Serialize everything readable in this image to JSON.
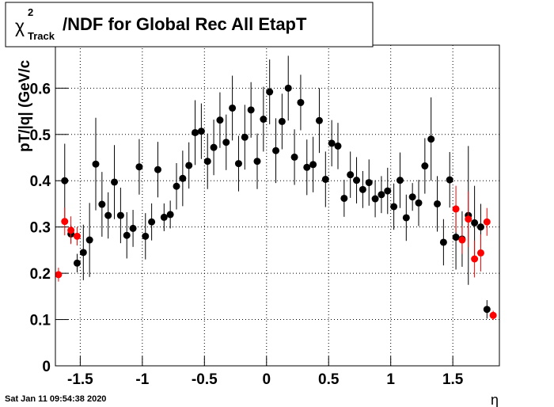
{
  "chart_data": {
    "type": "scatter",
    "title": {
      "symbol": "χ",
      "sup": "2",
      "sub": "Track",
      "text": "/NDF for Global Rec All EtapT"
    },
    "y_label": "pT/|q| (GeV/c",
    "x_label": "η",
    "timestamp": "Sat Jan 11 09:54:38 2020",
    "xlim": [
      -1.7,
      1.875
    ],
    "ylim": [
      0,
      0.693
    ],
    "xticks": [
      -1.5,
      -1,
      -0.5,
      0,
      0.5,
      1,
      1.5
    ],
    "yticks": [
      0,
      0.1,
      0.2,
      0.3,
      0.4,
      0.5,
      0.6
    ],
    "grid": true,
    "series": [
      {
        "color": "#000000",
        "x": [
          -1.625,
          -1.575,
          -1.525,
          -1.475,
          -1.425,
          -1.375,
          -1.325,
          -1.275,
          -1.225,
          -1.175,
          -1.125,
          -1.075,
          -1.025,
          -0.975,
          -0.925,
          -0.875,
          -0.825,
          -0.775,
          -0.725,
          -0.675,
          -0.625,
          -0.575,
          -0.525,
          -0.475,
          -0.425,
          -0.375,
          -0.325,
          -0.275,
          -0.225,
          -0.175,
          -0.125,
          -0.075,
          -0.025,
          0.025,
          0.075,
          0.125,
          0.175,
          0.225,
          0.275,
          0.325,
          0.375,
          0.425,
          0.475,
          0.525,
          0.575,
          0.625,
          0.675,
          0.725,
          0.775,
          0.825,
          0.875,
          0.925,
          0.975,
          1.025,
          1.075,
          1.125,
          1.175,
          1.225,
          1.275,
          1.325,
          1.375,
          1.425,
          1.475,
          1.525,
          1.575,
          1.625,
          1.675,
          1.725,
          1.775
        ],
        "values": [
          0.4,
          0.285,
          0.222,
          0.245,
          0.272,
          0.436,
          0.349,
          0.325,
          0.397,
          0.325,
          0.282,
          0.297,
          0.43,
          0.28,
          0.311,
          0.424,
          0.321,
          0.327,
          0.388,
          0.405,
          0.433,
          0.504,
          0.507,
          0.442,
          0.472,
          0.531,
          0.483,
          0.557,
          0.437,
          0.494,
          0.553,
          0.442,
          0.533,
          0.592,
          0.465,
          0.528,
          0.6,
          0.451,
          0.569,
          0.429,
          0.435,
          0.53,
          0.403,
          0.481,
          0.475,
          0.362,
          0.413,
          0.401,
          0.381,
          0.396,
          0.361,
          0.37,
          0.378,
          0.344,
          0.401,
          0.32,
          0.365,
          0.352,
          0.432,
          0.49,
          0.35,
          0.267,
          0.402,
          0.278,
          0.274,
          0.325,
          0.309,
          0.3,
          0.122
        ],
        "errors": [
          0.08,
          0.02,
          0.02,
          0.06,
          0.08,
          0.1,
          0.07,
          0.05,
          0.08,
          0.06,
          0.05,
          0.04,
          0.06,
          0.05,
          0.04,
          0.06,
          0.03,
          0.03,
          0.05,
          0.06,
          0.05,
          0.07,
          0.06,
          0.06,
          0.06,
          0.06,
          0.06,
          0.07,
          0.06,
          0.07,
          0.06,
          0.06,
          0.07,
          0.07,
          0.07,
          0.06,
          0.07,
          0.06,
          0.06,
          0.06,
          0.06,
          0.07,
          0.06,
          0.05,
          0.05,
          0.04,
          0.05,
          0.05,
          0.04,
          0.05,
          0.04,
          0.04,
          0.05,
          0.05,
          0.06,
          0.05,
          0.03,
          0.05,
          0.06,
          0.09,
          0.06,
          0.05,
          0.06,
          0.07,
          0.06,
          0.15,
          0.08,
          0.05,
          0.02
        ]
      },
      {
        "color": "#ff0000",
        "x": [
          -1.675,
          -1.625,
          -1.575,
          -1.525,
          1.525,
          1.575,
          1.625,
          1.675,
          1.725,
          1.775,
          1.825
        ],
        "values": [
          0.197,
          0.312,
          0.293,
          0.28,
          0.339,
          0.272,
          0.317,
          0.231,
          0.244,
          0.311,
          0.109
        ],
        "errors": [
          0.015,
          0.03,
          0.03,
          0.02,
          0.05,
          0.03,
          0.06,
          0.04,
          0.04,
          0.03,
          0.01
        ]
      }
    ]
  }
}
